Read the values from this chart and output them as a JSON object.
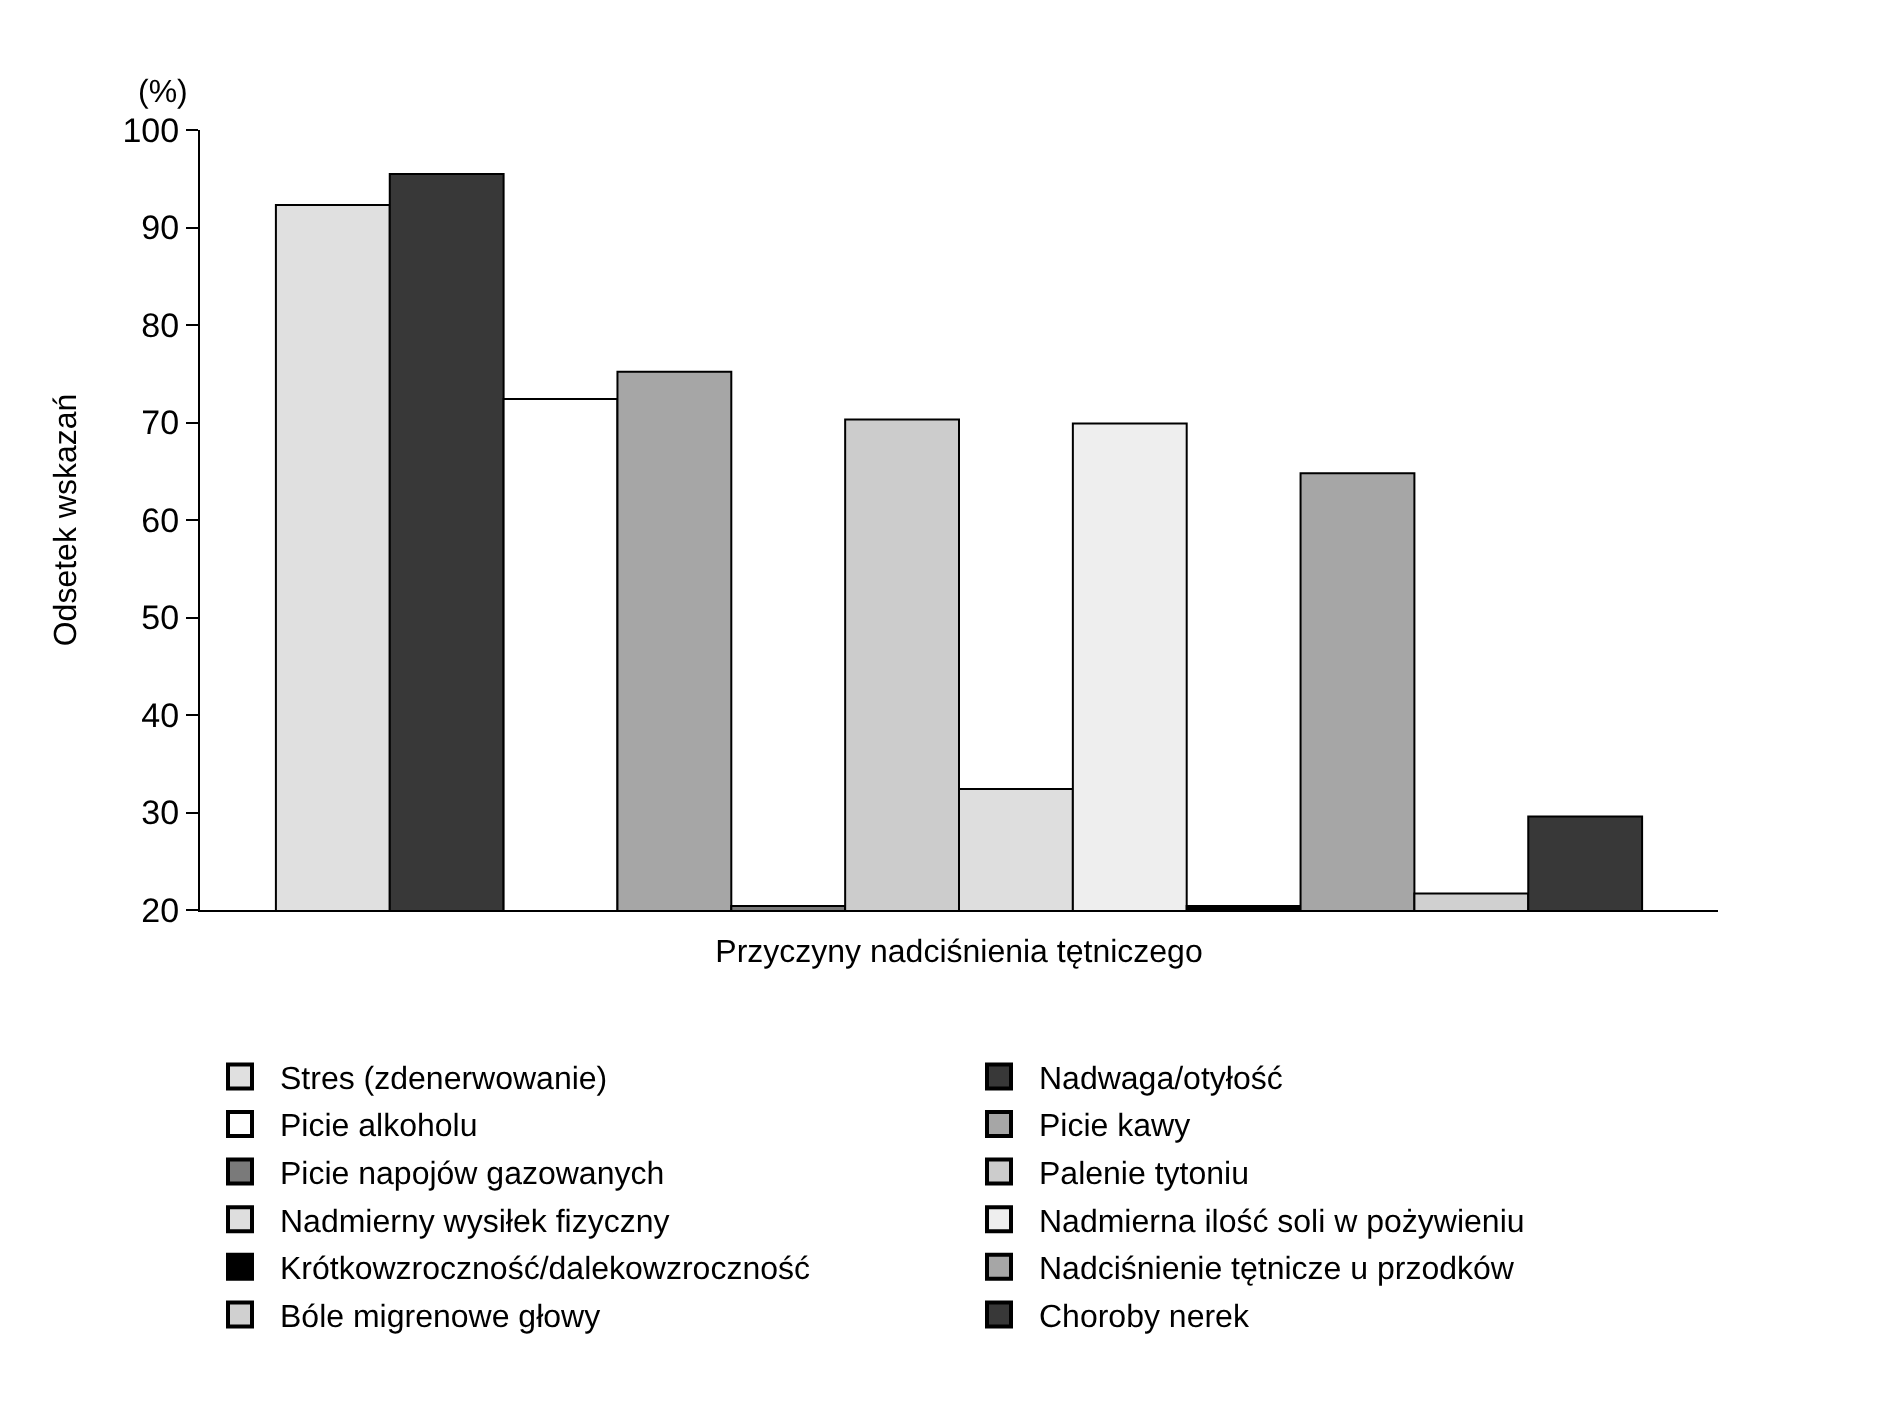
{
  "chart_data": {
    "type": "bar",
    "xlabel": "Przyczyny nadciśnienia tętniczego",
    "ylabel": "Odsetek wskazań",
    "annotations": [
      "(%)"
    ],
    "categories": [
      null
    ],
    "series": [
      {
        "name": "Stres (zdenerwowanie)",
        "color": "#e0e0e0",
        "values": [
          92.3
        ]
      },
      {
        "name": "Nadwaga/otyłość",
        "color": "#383838",
        "values": [
          95.5
        ]
      },
      {
        "name": "Picie alkoholu",
        "color": "#ffffff",
        "values": [
          72.4
        ]
      },
      {
        "name": "Picie kawy",
        "color": "#a6a6a6",
        "values": [
          75.2
        ]
      },
      {
        "name": "Picie napojów gazowanych",
        "color": "#7a7a7a",
        "values": [
          20.4
        ]
      },
      {
        "name": "Palenie tytoniu",
        "color": "#cccccc",
        "values": [
          70.3
        ]
      },
      {
        "name": "Nadmierny wysiłek fizyczny",
        "color": "#dedede",
        "values": [
          32.4
        ]
      },
      {
        "name": "Nadmierna ilość soli w pożywieniu",
        "color": "#eeeeee",
        "values": [
          69.9
        ]
      },
      {
        "name": "Krótkowzroczność/dalekowzroczność",
        "color": "#000000",
        "values": [
          20.4
        ]
      },
      {
        "name": "Nadciśnienie tętnicze u przodków",
        "color": "#a6a6a6",
        "values": [
          64.8
        ]
      },
      {
        "name": "Bóle migrenowe głowy",
        "color": "#d0d0d0",
        "values": [
          21.7
        ]
      },
      {
        "name": "Choroby nerek",
        "color": "#383838",
        "values": [
          29.6
        ]
      }
    ],
    "ylim": [
      20,
      100
    ],
    "yticks": [
      20,
      30,
      40,
      50,
      60,
      70,
      80,
      90,
      100
    ],
    "grid": false,
    "legend": "bottom"
  }
}
